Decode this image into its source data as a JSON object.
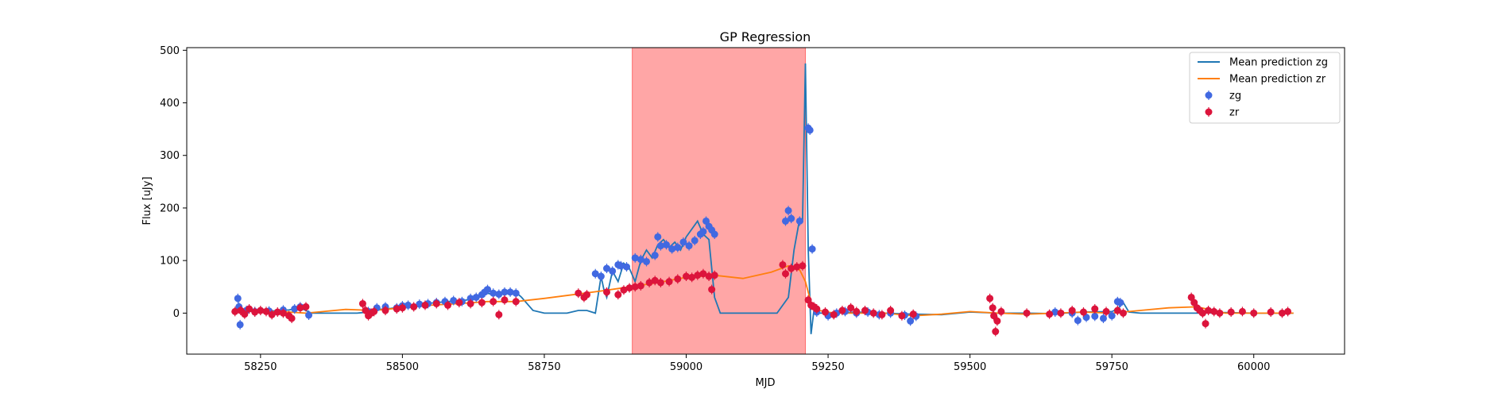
{
  "chart_data": {
    "type": "scatter",
    "title": "GP Regression",
    "xlabel": "MJD",
    "ylabel": "Flux [uJy]",
    "xlim": [
      58120,
      60160
    ],
    "ylim": [
      -78,
      505
    ],
    "xticks": [
      58250,
      58500,
      58750,
      59000,
      59250,
      59500,
      59750,
      60000
    ],
    "yticks": [
      0,
      100,
      200,
      300,
      400,
      500
    ],
    "legend_position": "top-right",
    "shaded_region": {
      "x_start": 58905,
      "x_end": 59210,
      "color": "#ffa6a6"
    },
    "lines": [
      {
        "name": "Mean prediction zg",
        "color": "#1f77b4",
        "x": [
          58205,
          58240,
          58270,
          58300,
          58320,
          58340,
          58420,
          58430,
          58440,
          58460,
          58480,
          58500,
          58520,
          58540,
          58560,
          58580,
          58600,
          58620,
          58640,
          58650,
          58660,
          58680,
          58700,
          58710,
          58730,
          58750,
          58770,
          58790,
          58810,
          58825,
          58840,
          58850,
          58855,
          58860,
          58870,
          58880,
          58890,
          58900,
          58910,
          58920,
          58930,
          58940,
          58950,
          58960,
          58970,
          58980,
          58990,
          59000,
          59010,
          59020,
          59030,
          59040,
          59050,
          59060,
          59080,
          59120,
          59160,
          59180,
          59190,
          59200,
          59205,
          59210,
          59215,
          59220,
          59225,
          59230,
          59250,
          59300,
          59350,
          59400,
          59450,
          59500,
          59550,
          59600,
          59650,
          59700,
          59750,
          59760,
          59770,
          59780,
          59800,
          59850,
          59900,
          59950,
          60000,
          60050,
          60070
        ],
        "y": [
          8,
          5,
          4,
          6,
          10,
          0,
          0,
          1,
          3,
          7,
          9,
          12,
          14,
          18,
          20,
          22,
          23,
          26,
          32,
          38,
          35,
          36,
          40,
          30,
          5,
          0,
          0,
          0,
          5,
          5,
          0,
          70,
          45,
          30,
          80,
          60,
          95,
          85,
          60,
          100,
          120,
          105,
          130,
          140,
          125,
          135,
          120,
          145,
          160,
          175,
          150,
          140,
          30,
          0,
          0,
          0,
          0,
          30,
          120,
          180,
          175,
          475,
          120,
          -40,
          5,
          0,
          0,
          2,
          0,
          -2,
          -3,
          2,
          0,
          0,
          -1,
          2,
          3,
          8,
          20,
          2,
          0,
          0,
          0,
          1,
          0,
          0,
          0
        ]
      },
      {
        "name": "Mean prediction zr",
        "color": "#ff7f0e",
        "x": [
          58205,
          58240,
          58300,
          58330,
          58360,
          58400,
          58450,
          58500,
          58550,
          58600,
          58650,
          58700,
          58750,
          58800,
          58850,
          58900,
          58950,
          59000,
          59050,
          59100,
          59150,
          59180,
          59200,
          59210,
          59220,
          59235,
          59260,
          59300,
          59350,
          59400,
          59450,
          59500,
          59550,
          59600,
          59650,
          59700,
          59750,
          59800,
          59850,
          59900,
          59950,
          60000,
          60070
        ],
        "y": [
          5,
          3,
          2,
          0,
          3,
          7,
          5,
          10,
          15,
          18,
          22,
          22,
          28,
          35,
          42,
          50,
          58,
          68,
          72,
          66,
          78,
          90,
          82,
          60,
          20,
          5,
          0,
          0,
          0,
          -5,
          -2,
          3,
          0,
          -2,
          0,
          2,
          0,
          5,
          10,
          12,
          0,
          0,
          0
        ]
      }
    ],
    "series": [
      {
        "name": "zg",
        "color": "#4169e1",
        "points": [
          [
            58210,
            28
          ],
          [
            58212,
            12
          ],
          [
            58214,
            -22
          ],
          [
            58225,
            5
          ],
          [
            58240,
            3
          ],
          [
            58265,
            4
          ],
          [
            58290,
            6
          ],
          [
            58310,
            8
          ],
          [
            58320,
            12
          ],
          [
            58335,
            -4
          ],
          [
            58440,
            3
          ],
          [
            58455,
            10
          ],
          [
            58470,
            12
          ],
          [
            58490,
            10
          ],
          [
            58500,
            14
          ],
          [
            58510,
            15
          ],
          [
            58530,
            17
          ],
          [
            58545,
            18
          ],
          [
            58560,
            20
          ],
          [
            58575,
            22
          ],
          [
            58590,
            24
          ],
          [
            58605,
            22
          ],
          [
            58620,
            28
          ],
          [
            58630,
            30
          ],
          [
            58640,
            35
          ],
          [
            58645,
            40
          ],
          [
            58650,
            45
          ],
          [
            58660,
            38
          ],
          [
            58670,
            36
          ],
          [
            58680,
            40
          ],
          [
            58690,
            40
          ],
          [
            58700,
            38
          ],
          [
            58840,
            75
          ],
          [
            58850,
            70
          ],
          [
            58860,
            85
          ],
          [
            58870,
            80
          ],
          [
            58880,
            92
          ],
          [
            58885,
            90
          ],
          [
            58895,
            88
          ],
          [
            58910,
            105
          ],
          [
            58920,
            102
          ],
          [
            58930,
            98
          ],
          [
            58945,
            110
          ],
          [
            58950,
            145
          ],
          [
            58955,
            128
          ],
          [
            58965,
            130
          ],
          [
            58975,
            122
          ],
          [
            58985,
            125
          ],
          [
            58995,
            135
          ],
          [
            59005,
            128
          ],
          [
            59015,
            138
          ],
          [
            59025,
            150
          ],
          [
            59030,
            155
          ],
          [
            59035,
            175
          ],
          [
            59040,
            165
          ],
          [
            59045,
            158
          ],
          [
            59050,
            150
          ],
          [
            59175,
            175
          ],
          [
            59180,
            195
          ],
          [
            59185,
            180
          ],
          [
            59200,
            175
          ],
          [
            59215,
            352
          ],
          [
            59218,
            348
          ],
          [
            59222,
            122
          ],
          [
            59230,
            2
          ],
          [
            59250,
            -5
          ],
          [
            59265,
            0
          ],
          [
            59280,
            3
          ],
          [
            59300,
            0
          ],
          [
            59320,
            2
          ],
          [
            59340,
            -3
          ],
          [
            59360,
            0
          ],
          [
            59385,
            -4
          ],
          [
            59395,
            -15
          ],
          [
            59405,
            -6
          ],
          [
            59650,
            2
          ],
          [
            59680,
            0
          ],
          [
            59690,
            -14
          ],
          [
            59705,
            -8
          ],
          [
            59720,
            -6
          ],
          [
            59735,
            -10
          ],
          [
            59750,
            -5
          ],
          [
            59760,
            22
          ],
          [
            59765,
            20
          ]
        ]
      },
      {
        "name": "zr",
        "color": "#dc143c",
        "points": [
          [
            58205,
            3
          ],
          [
            58215,
            5
          ],
          [
            58222,
            -2
          ],
          [
            58230,
            8
          ],
          [
            58240,
            2
          ],
          [
            58250,
            5
          ],
          [
            58260,
            3
          ],
          [
            58270,
            -3
          ],
          [
            58280,
            2
          ],
          [
            58290,
            0
          ],
          [
            58300,
            -5
          ],
          [
            58305,
            -10
          ],
          [
            58320,
            10
          ],
          [
            58330,
            12
          ],
          [
            58430,
            18
          ],
          [
            58435,
            5
          ],
          [
            58440,
            -5
          ],
          [
            58445,
            0
          ],
          [
            58450,
            3
          ],
          [
            58470,
            5
          ],
          [
            58490,
            8
          ],
          [
            58500,
            10
          ],
          [
            58520,
            12
          ],
          [
            58540,
            15
          ],
          [
            58560,
            18
          ],
          [
            58580,
            15
          ],
          [
            58600,
            20
          ],
          [
            58620,
            18
          ],
          [
            58640,
            20
          ],
          [
            58660,
            22
          ],
          [
            58670,
            -3
          ],
          [
            58680,
            25
          ],
          [
            58700,
            22
          ],
          [
            58810,
            38
          ],
          [
            58820,
            30
          ],
          [
            58825,
            35
          ],
          [
            58860,
            40
          ],
          [
            58880,
            35
          ],
          [
            58890,
            44
          ],
          [
            58900,
            48
          ],
          [
            58910,
            50
          ],
          [
            58920,
            52
          ],
          [
            58935,
            58
          ],
          [
            58945,
            62
          ],
          [
            58955,
            58
          ],
          [
            58970,
            60
          ],
          [
            58985,
            65
          ],
          [
            59000,
            70
          ],
          [
            59010,
            68
          ],
          [
            59020,
            72
          ],
          [
            59030,
            75
          ],
          [
            59040,
            70
          ],
          [
            59045,
            45
          ],
          [
            59050,
            72
          ],
          [
            59170,
            92
          ],
          [
            59175,
            75
          ],
          [
            59185,
            85
          ],
          [
            59195,
            88
          ],
          [
            59205,
            90
          ],
          [
            59215,
            25
          ],
          [
            59220,
            15
          ],
          [
            59225,
            12
          ],
          [
            59230,
            8
          ],
          [
            59245,
            2
          ],
          [
            59260,
            -3
          ],
          [
            59275,
            5
          ],
          [
            59290,
            10
          ],
          [
            59300,
            3
          ],
          [
            59315,
            5
          ],
          [
            59330,
            0
          ],
          [
            59345,
            -3
          ],
          [
            59360,
            5
          ],
          [
            59380,
            -5
          ],
          [
            59400,
            -2
          ],
          [
            59535,
            28
          ],
          [
            59540,
            10
          ],
          [
            59542,
            -5
          ],
          [
            59545,
            -35
          ],
          [
            59548,
            -15
          ],
          [
            59555,
            3
          ],
          [
            59600,
            0
          ],
          [
            59640,
            -2
          ],
          [
            59660,
            0
          ],
          [
            59680,
            5
          ],
          [
            59700,
            2
          ],
          [
            59720,
            8
          ],
          [
            59740,
            3
          ],
          [
            59760,
            5
          ],
          [
            59770,
            0
          ],
          [
            59890,
            30
          ],
          [
            59895,
            20
          ],
          [
            59900,
            10
          ],
          [
            59905,
            5
          ],
          [
            59910,
            0
          ],
          [
            59915,
            -20
          ],
          [
            59920,
            5
          ],
          [
            59930,
            3
          ],
          [
            59940,
            0
          ],
          [
            59960,
            2
          ],
          [
            59980,
            3
          ],
          [
            60000,
            0
          ],
          [
            60030,
            2
          ],
          [
            60050,
            0
          ],
          [
            60060,
            3
          ]
        ]
      }
    ]
  }
}
